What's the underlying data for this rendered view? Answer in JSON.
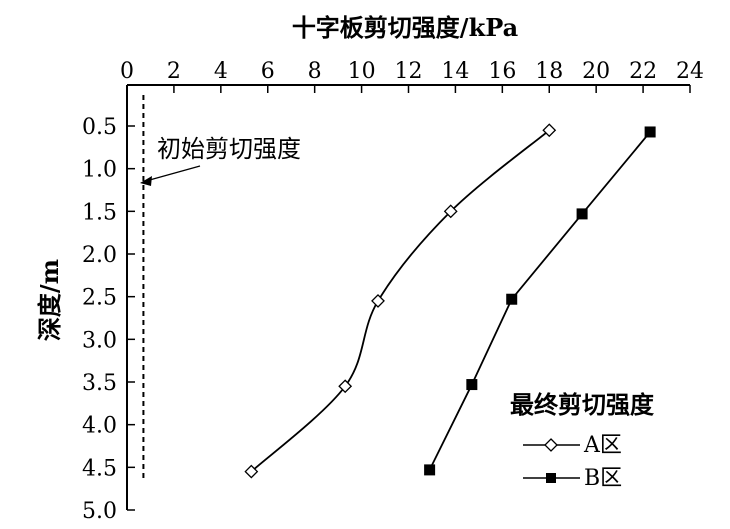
{
  "chart_data": {
    "type": "line",
    "xlabel": "十字板剪切强度/kPa",
    "ylabel": "深度/m",
    "xlim": [
      0,
      24
    ],
    "ylim": [
      0.5,
      5.0
    ],
    "x_axis_position": "top",
    "y_axis_inverted": true,
    "x_ticks": [
      "0",
      "2",
      "4",
      "6",
      "8",
      "10",
      "12",
      "14",
      "16",
      "18",
      "20",
      "22",
      "24"
    ],
    "y_ticks": [
      "0.5",
      "1.0",
      "1.5",
      "2.0",
      "2.5",
      "3.0",
      "3.5",
      "4.0",
      "4.5",
      "5.0"
    ],
    "grid": false,
    "series": [
      {
        "name": "A区",
        "marker": "open-diamond",
        "smooth": true,
        "points": [
          [
            18.0,
            0.55
          ],
          [
            13.8,
            1.5
          ],
          [
            10.7,
            2.55
          ],
          [
            9.3,
            3.55
          ],
          [
            5.3,
            4.55
          ]
        ]
      },
      {
        "name": "B区",
        "marker": "filled-square",
        "smooth": false,
        "points": [
          [
            22.3,
            0.57
          ],
          [
            19.4,
            1.53
          ],
          [
            16.4,
            2.53
          ],
          [
            14.7,
            3.53
          ],
          [
            12.9,
            4.53
          ]
        ]
      }
    ],
    "reference_line": {
      "x": 0.7,
      "style": "dashed",
      "y_from": 0.5,
      "y_to": 4.55
    },
    "annotation": {
      "text": "初始剪切强度",
      "arrow_target": [
        0.7,
        1.15
      ]
    },
    "legend": {
      "title": "最终剪切强度",
      "placement": "bottom-right"
    }
  }
}
